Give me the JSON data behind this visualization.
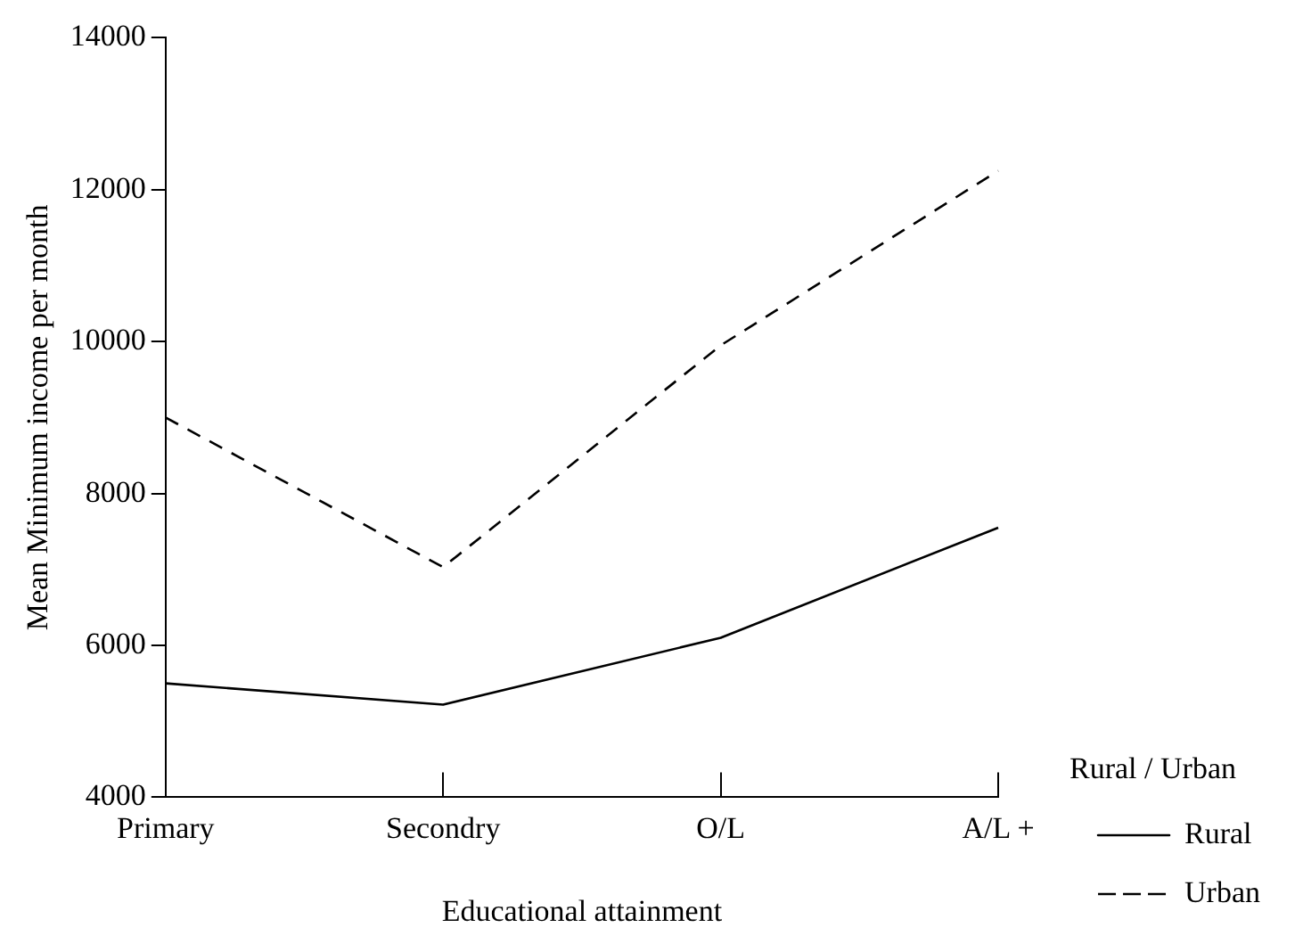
{
  "chart_data": {
    "type": "line",
    "xlabel": "Educational attainment",
    "ylabel": "Mean Minimum income per month",
    "legend_title": "Rural / Urban",
    "categories": [
      "Primary",
      "Secondry",
      "O/L",
      "A/L +"
    ],
    "series": [
      {
        "name": "Rural",
        "color": "#000000",
        "line_style": "solid",
        "values": [
          5500,
          5220,
          6100,
          7550
        ]
      },
      {
        "name": "Urban",
        "color": "#000000",
        "line_style": "dashed",
        "values": [
          9000,
          7030,
          9950,
          12250
        ]
      }
    ],
    "ylim": [
      4000,
      14000
    ],
    "yticks": [
      4000,
      6000,
      8000,
      10000,
      12000,
      14000
    ],
    "grid": false,
    "legend": "bottom right",
    "marker": "none"
  }
}
